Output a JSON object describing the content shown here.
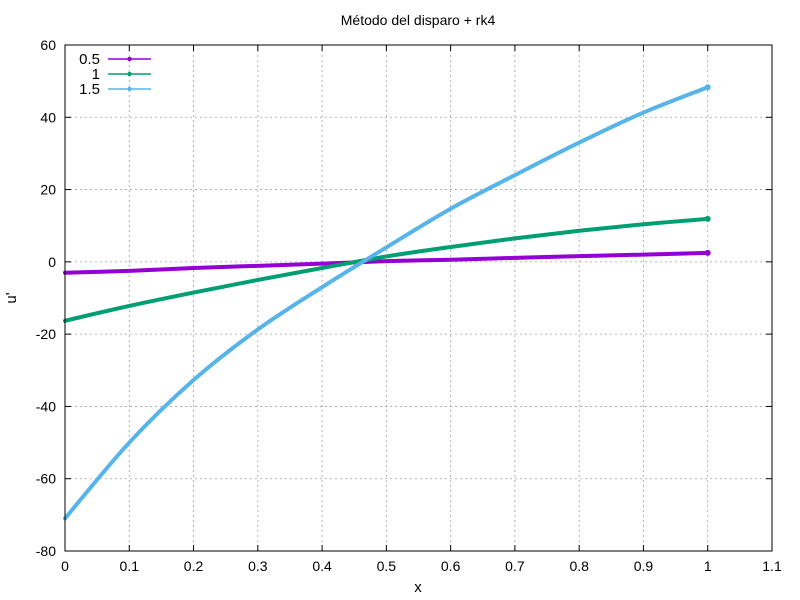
{
  "chart_data": {
    "type": "line",
    "title": "Método del disparo + rk4",
    "xlabel": "x",
    "ylabel": "u'",
    "xlim": [
      0,
      1.1
    ],
    "ylim": [
      -80,
      60
    ],
    "xticks": [
      0,
      0.1,
      0.2,
      0.3,
      0.4,
      0.5,
      0.6,
      0.7,
      0.8,
      0.9,
      1,
      1.1
    ],
    "xtick_labels": [
      "0",
      "0.1",
      "0.2",
      "0.3",
      "0.4",
      "0.5",
      "0.6",
      "0.7",
      "0.8",
      "0.9",
      "1",
      "1.1"
    ],
    "yticks": [
      -80,
      -60,
      -40,
      -20,
      0,
      20,
      40,
      60
    ],
    "ytick_labels": [
      "-80",
      "-60",
      "-40",
      "-20",
      "0",
      "20",
      "40",
      "60"
    ],
    "grid": true,
    "legend_position": "top-left",
    "x": [
      0,
      0.1,
      0.2,
      0.3,
      0.4,
      0.5,
      0.6,
      0.7,
      0.8,
      0.9,
      1.0
    ],
    "series": [
      {
        "name": "0.5",
        "color": "#9400d3",
        "values": [
          -3.0,
          -2.5,
          -1.7,
          -1.1,
          -0.5,
          0.2,
          0.6,
          1.1,
          1.6,
          2.0,
          2.5
        ]
      },
      {
        "name": "1",
        "color": "#009e73",
        "values": [
          -16.3,
          -12.2,
          -8.5,
          -5.0,
          -1.7,
          1.5,
          4.1,
          6.5,
          8.6,
          10.4,
          11.9
        ]
      },
      {
        "name": "1.5",
        "color": "#56b4e9",
        "values": [
          -71.0,
          -50.0,
          -32.7,
          -18.7,
          -7.0,
          4.0,
          14.7,
          24.0,
          33.0,
          41.3,
          48.3
        ]
      }
    ]
  }
}
